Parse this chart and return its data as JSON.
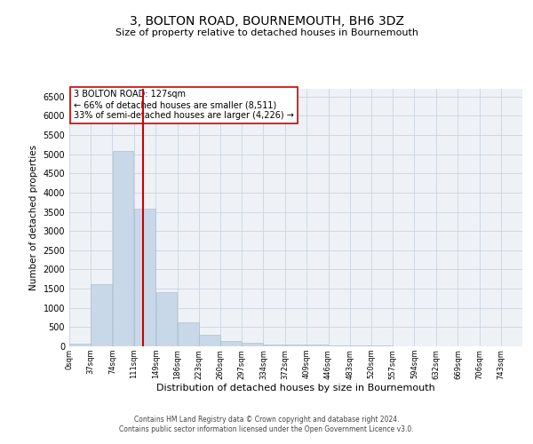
{
  "title": "3, BOLTON ROAD, BOURNEMOUTH, BH6 3DZ",
  "subtitle": "Size of property relative to detached houses in Bournemouth",
  "xlabel": "Distribution of detached houses by size in Bournemouth",
  "ylabel": "Number of detached properties",
  "bar_color": "#c8d8e8",
  "bar_edge_color": "#a0b8cc",
  "grid_color": "#c8d4e0",
  "background_color": "#eef2f7",
  "annotation_text": "3 BOLTON ROAD: 127sqm\n← 66% of detached houses are smaller (8,511)\n33% of semi-detached houses are larger (4,226) →",
  "vline_x": 127,
  "vline_color": "#cc0000",
  "bin_edges": [
    0,
    37,
    74,
    111,
    149,
    186,
    223,
    260,
    297,
    334,
    372,
    409,
    446,
    483,
    520,
    557,
    594,
    632,
    669,
    706,
    743
  ],
  "bar_heights": [
    75,
    1625,
    5075,
    3575,
    1400,
    615,
    300,
    135,
    95,
    55,
    45,
    50,
    30,
    20,
    15,
    10,
    10,
    5,
    5,
    5
  ],
  "tick_labels": [
    "0sqm",
    "37sqm",
    "74sqm",
    "111sqm",
    "149sqm",
    "186sqm",
    "223sqm",
    "260sqm",
    "297sqm",
    "334sqm",
    "372sqm",
    "409sqm",
    "446sqm",
    "483sqm",
    "520sqm",
    "557sqm",
    "594sqm",
    "632sqm",
    "669sqm",
    "706sqm",
    "743sqm"
  ],
  "ylim": [
    0,
    6700
  ],
  "yticks": [
    0,
    500,
    1000,
    1500,
    2000,
    2500,
    3000,
    3500,
    4000,
    4500,
    5000,
    5500,
    6000,
    6500
  ],
  "footer_line1": "Contains HM Land Registry data © Crown copyright and database right 2024.",
  "footer_line2": "Contains public sector information licensed under the Open Government Licence v3.0."
}
